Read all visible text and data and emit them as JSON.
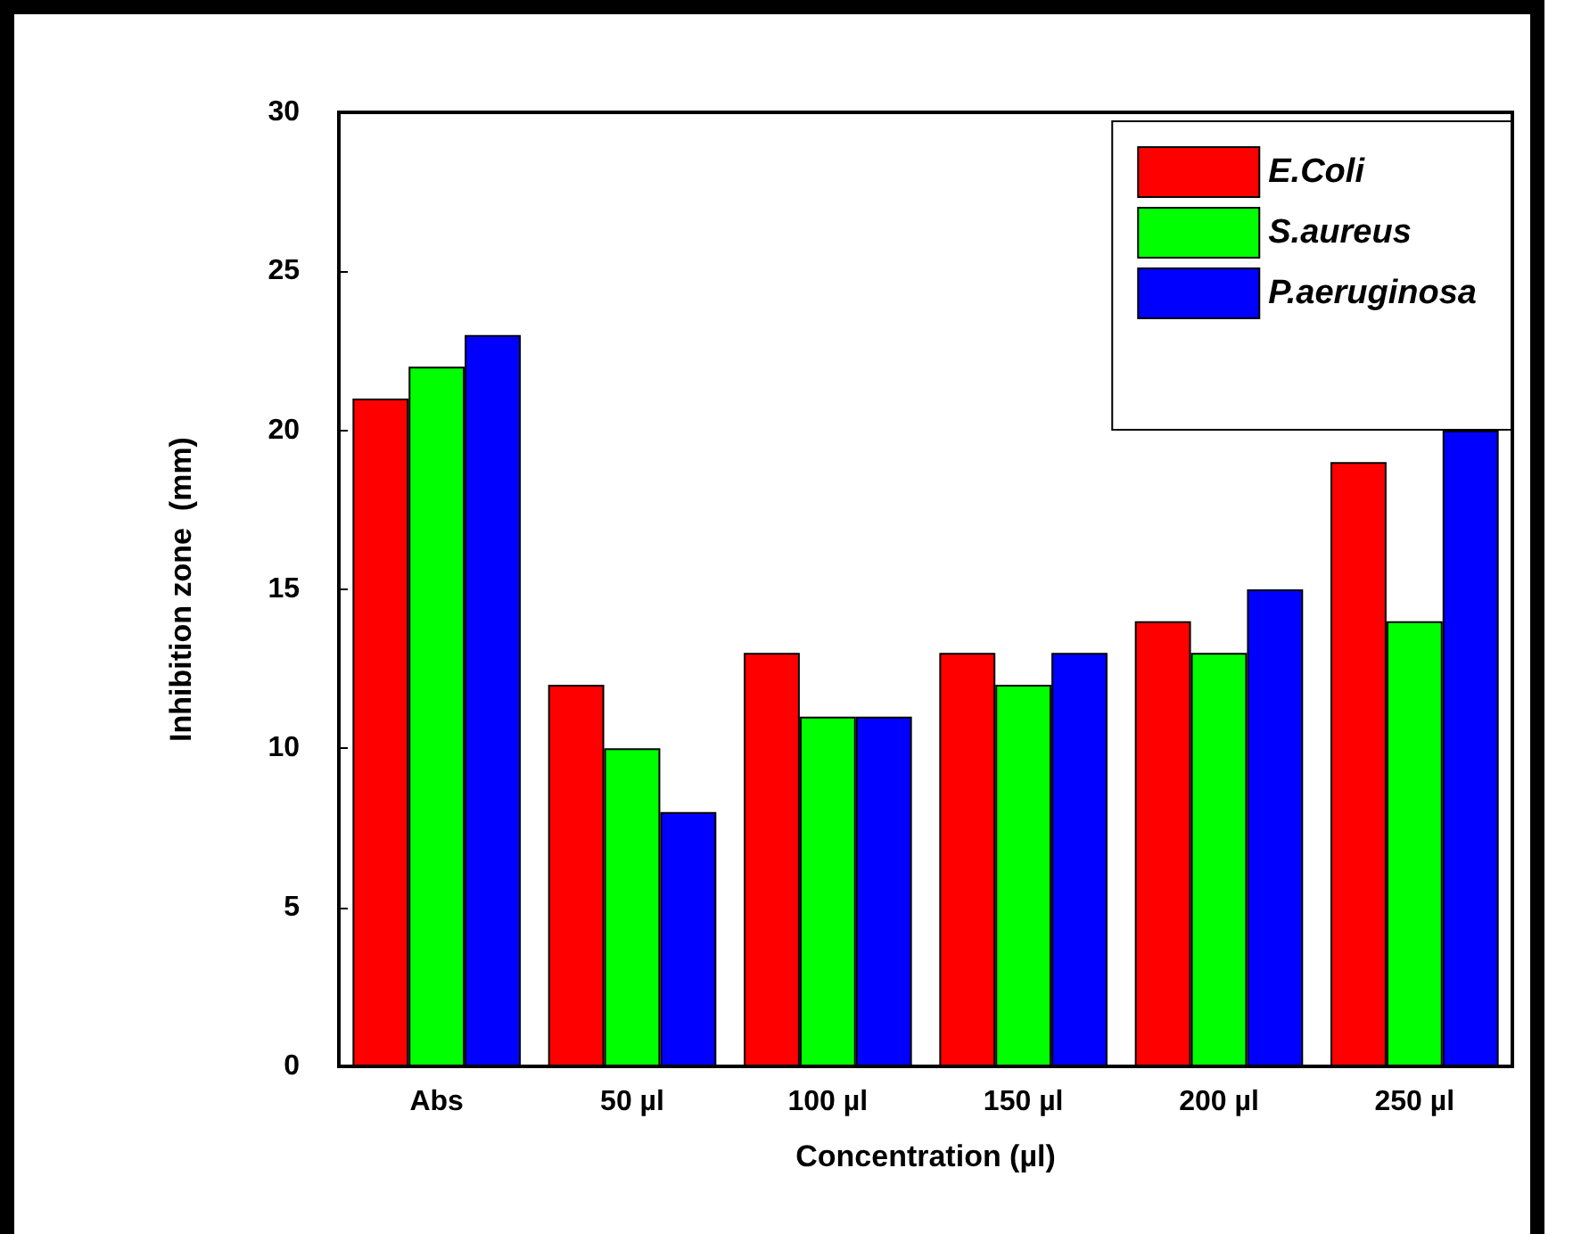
{
  "chart_data": {
    "type": "bar",
    "xlabel": "Concentration (µl)",
    "ylabel": "Inhibition zone  (mm)",
    "categories": [
      "Abs",
      "50 µl",
      "100 µl",
      "150 µl",
      "200 µl",
      "250 µl"
    ],
    "series": [
      {
        "name": "E.Coli",
        "color": "#ff0000",
        "values": [
          21,
          12,
          13,
          13,
          14,
          19
        ]
      },
      {
        "name": "S.aureus",
        "color": "#00ff00",
        "values": [
          22,
          10,
          11,
          12,
          13,
          14
        ]
      },
      {
        "name": "P.aeruginosa",
        "color": "#0000ff",
        "values": [
          23,
          8,
          11,
          13,
          15,
          20
        ]
      }
    ],
    "ylim": [
      0,
      30
    ],
    "yticks": [
      0,
      5,
      10,
      15,
      20,
      25,
      30
    ],
    "grid": false,
    "legend": "top right"
  }
}
